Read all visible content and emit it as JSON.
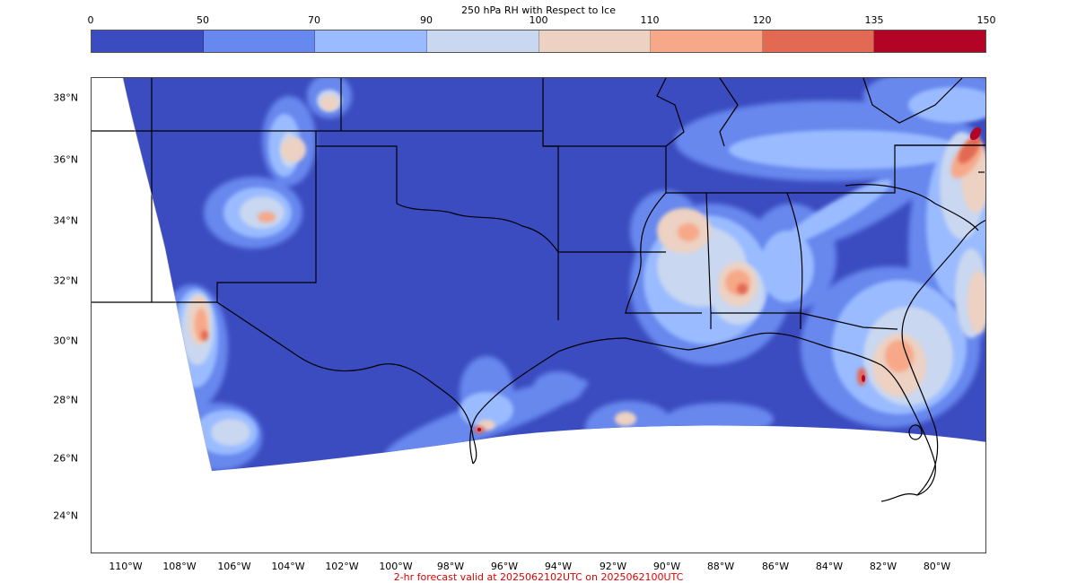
{
  "colorbar": {
    "title": "250 hPa RH with Respect to Ice",
    "ticks": [
      "0",
      "50",
      "70",
      "90",
      "100",
      "110",
      "120",
      "135",
      "150"
    ],
    "colors": [
      "#3b4cc0",
      "#6788ee",
      "#9abbff",
      "#c9d7f0",
      "#edd1c2",
      "#f7a889",
      "#e26952",
      "#b40426"
    ]
  },
  "map": {
    "lat_labels": [
      "38°N",
      "36°N",
      "34°N",
      "32°N",
      "30°N",
      "28°N",
      "26°N",
      "24°N"
    ],
    "lon_labels": [
      "110°W",
      "108°W",
      "106°W",
      "104°W",
      "102°W",
      "100°W",
      "98°W",
      "96°W",
      "94°W",
      "92°W",
      "90°W",
      "88°W",
      "86°W",
      "84°W",
      "82°W",
      "80°W"
    ],
    "background_color": "#3b4cc0",
    "border_color": "#000000"
  },
  "footer": {
    "text": "2-hr forecast valid at 2025062102UTC on 2025062100UTC"
  }
}
